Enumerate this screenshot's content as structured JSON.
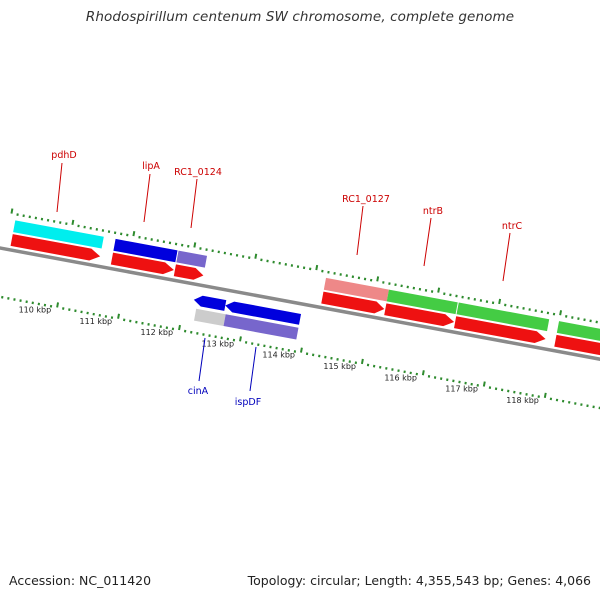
{
  "title": "Rhodospirillum centenum SW chromosome, complete genome",
  "footer": {
    "accession": "Accession: NC_011420",
    "topology": "Topology: circular; Length: 4,355,543 bp; Genes: 4,066"
  },
  "colors": {
    "background": "#ffffff",
    "backbone": "#888888",
    "tick": "#2e8b2e",
    "cds_red": "#ee1111",
    "label_forward": "#cc0000",
    "label_reverse": "#0000bb"
  },
  "scale": {
    "ticks": [
      {
        "label": "110 kbp"
      },
      {
        "label": "111 kbp"
      },
      {
        "label": "112 kbp"
      },
      {
        "label": "113 kbp"
      },
      {
        "label": "114 kbp"
      },
      {
        "label": "115 kbp"
      },
      {
        "label": "116 kbp"
      },
      {
        "label": "117 kbp"
      },
      {
        "label": "118 kbp"
      }
    ]
  },
  "gene_labels": [
    {
      "id": "pdhD",
      "text": "pdhD",
      "strand": "forward"
    },
    {
      "id": "lipA",
      "text": "lipA",
      "strand": "forward"
    },
    {
      "id": "rc1-0124",
      "text": "RC1_0124",
      "strand": "forward"
    },
    {
      "id": "rc1-0127",
      "text": "RC1_0127",
      "strand": "forward"
    },
    {
      "id": "ntrB",
      "text": "ntrB",
      "strand": "forward"
    },
    {
      "id": "ntrC",
      "text": "ntrC",
      "strand": "forward"
    },
    {
      "id": "cinA",
      "text": "cinA",
      "strand": "reverse"
    },
    {
      "id": "ispDF",
      "text": "ispDF",
      "strand": "reverse"
    }
  ]
}
